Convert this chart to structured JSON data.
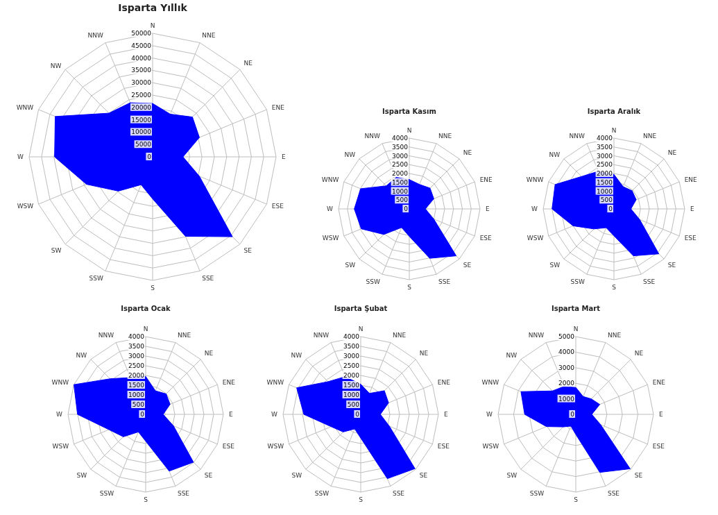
{
  "chart_data": [
    {
      "type": "radar",
      "title": "Isparta Yıllık",
      "categories": [
        "N",
        "NNE",
        "NE",
        "ENE",
        "E",
        "ESE",
        "SE",
        "SSE",
        "S",
        "SSW",
        "SW",
        "WSW",
        "W",
        "WNW",
        "NW",
        "NNW"
      ],
      "series": [
        {
          "color": "#0000ff",
          "values": [
            21600,
            18700,
            22800,
            20500,
            12300,
            20500,
            45700,
            34800,
            17000,
            12200,
            19600,
            29000,
            39700,
            42700,
            25000,
            23700
          ]
        }
      ],
      "ylim": [
        0,
        50000
      ],
      "yticks": [
        0,
        5000,
        10000,
        15000,
        20000,
        25000,
        30000,
        35000,
        40000,
        45000,
        50000
      ],
      "grid": true
    },
    {
      "type": "radar",
      "title": "Isparta Kasım",
      "categories": [
        "N",
        "NNE",
        "NE",
        "ENE",
        "E",
        "ESE",
        "SE",
        "SSE",
        "S",
        "SSW",
        "SW",
        "WSW",
        "W",
        "WNW",
        "NW",
        "NNW"
      ],
      "series": [
        {
          "color": "#0000ff",
          "values": [
            1660,
            1500,
            1660,
            1500,
            910,
            1500,
            3750,
            3020,
            1550,
            1140,
            2040,
            2940,
            3110,
            2980,
            1840,
            1930
          ]
        }
      ],
      "ylim": [
        0,
        4000
      ],
      "yticks": [
        0,
        500,
        1000,
        1500,
        2000,
        2500,
        3000,
        3500,
        4000
      ],
      "grid": true
    },
    {
      "type": "radar",
      "title": "Isparta Aralık",
      "categories": [
        "N",
        "NNE",
        "NE",
        "ENE",
        "E",
        "ESE",
        "SE",
        "SSE",
        "S",
        "SSW",
        "SW",
        "WSW",
        "W",
        "WNW",
        "NW",
        "NNW"
      ],
      "series": [
        {
          "color": "#0000ff",
          "values": [
            1950,
            1360,
            1450,
            1360,
            960,
            1580,
            3590,
            2870,
            1520,
            1150,
            1600,
            2500,
            3500,
            3600,
            2590,
            2300
          ]
        }
      ],
      "ylim": [
        0,
        4000
      ],
      "yticks": [
        0,
        500,
        1000,
        1500,
        2000,
        2500,
        3000,
        3500,
        4000
      ],
      "grid": true
    },
    {
      "type": "radar",
      "title": "Isparta Ocak",
      "categories": [
        "N",
        "NNE",
        "NE",
        "ENE",
        "E",
        "ESE",
        "SE",
        "SSE",
        "S",
        "SSW",
        "SW",
        "WSW",
        "W",
        "WNW",
        "NW",
        "NNW"
      ],
      "series": [
        {
          "color": "#0000ff",
          "values": [
            1950,
            1310,
            1490,
            1360,
            900,
            1550,
            3480,
            3160,
            1380,
            980,
            1630,
            2050,
            3510,
            4000,
            2590,
            2050
          ]
        }
      ],
      "ylim": [
        0,
        4000
      ],
      "yticks": [
        0,
        500,
        1000,
        1500,
        2000,
        2500,
        3000,
        3500,
        4000
      ],
      "grid": true
    },
    {
      "type": "radar",
      "title": "Isparta Şubat",
      "categories": [
        "N",
        "NNE",
        "NE",
        "ENE",
        "E",
        "ESE",
        "SE",
        "SSE",
        "S",
        "SSW",
        "SW",
        "WSW",
        "W",
        "WNW",
        "NW",
        "NNW"
      ],
      "series": [
        {
          "color": "#0000ff",
          "values": [
            1550,
            1170,
            1720,
            1550,
            1010,
            1600,
            3950,
            3580,
            1220,
            810,
            1280,
            1650,
            2930,
            3570,
            2380,
            2100
          ]
        }
      ],
      "ylim": [
        0,
        4000
      ],
      "yticks": [
        0,
        500,
        1000,
        1500,
        2000,
        2500,
        3000,
        3500,
        4000
      ],
      "grid": true
    },
    {
      "type": "radar",
      "title": "Isparta Mart",
      "categories": [
        "N",
        "NNE",
        "NE",
        "ENE",
        "E",
        "ESE",
        "SE",
        "SSE",
        "S",
        "SSW",
        "SW",
        "WSW",
        "W",
        "WNW",
        "NW",
        "NNW"
      ],
      "series": [
        {
          "color": "#0000ff",
          "values": [
            1730,
            1240,
            1410,
            1670,
            1030,
            1730,
            4950,
            4040,
            1290,
            820,
            1140,
            2050,
            3290,
            3820,
            2130,
            1950
          ]
        }
      ],
      "ylim": [
        0,
        5000
      ],
      "yticks": [
        0,
        1000,
        2000,
        3000,
        4000,
        5000
      ],
      "grid": true
    }
  ]
}
